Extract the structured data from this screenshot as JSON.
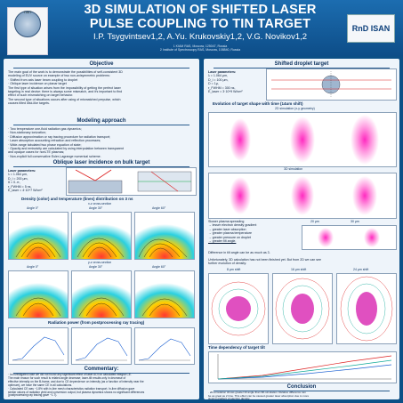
{
  "header": {
    "title_line1": "3D SIMULATION OF SHIFTED LASER",
    "title_line2": "PULSE COUPLING TO TIN TARGET",
    "authors": "I.P. Tsygvintsev1,2, A.Yu. Krukovskiy1,2, V.G. Novikov1,2",
    "affil1": "1 KIAM RAS, Moscow, 125047, Russia",
    "affil2": "2 Institute of Spectroscopy RAS, Moscow, 108840, Russia",
    "logo_right_text": "RnD ISAN"
  },
  "left": {
    "objective_title": "Objective",
    "objective_text": [
      "The main goal of the work is to demonstrate the possibilities of self-consistent 3D",
      "modeling of EUV source on example of two non-axisymmetric problems:",
      "· Shifted from axis laser beam coupling to droplet",
      "· Oblique laser incidence on planar target",
      "The first type of situation arises from the impossibility of getting the perfect laser",
      "targeting in real device: there is always some mismatch, and it's important to find",
      "effect of such mismatching on target behavior.",
      "The second type of situations occurs after using of mismatched prepulse, which",
      "causes tilted disk-like targets."
    ],
    "modeling_title": "Modeling approach",
    "modeling_text": [
      "· Two temperature one-fluid radiation gas dynamics;",
      "· Non-stationary ionization;",
      "· Diffusion approximation or ray tracing procedure for radiation transport;",
      "· Laser absorption accounting refraction and reflection processes;",
      "· Wide-range tabulated two phase equation of state;",
      "· Opacity and emissivity are calculated by using interpolation between transparent",
      "  and opaque cases for nonLTE plasmas;",
      "· Non-explicit full conservative Euler-Lagrange numerical scheme."
    ],
    "oblique_title": "Oblique laser incidence on bulk target",
    "laser_params_title": "Laser parameters:",
    "laser_params": [
      "λ = 1.064 μm,",
      "D_l = 200 μm,",
      "θ = 0..π,",
      "τ_FWHM = 5 ns,",
      "E_laser = 4·10^7 W/cm²"
    ],
    "density_title": "Density (color) and temperature (lines) distribution on 3 ns",
    "xz_label": "x-z cross-section",
    "angle_labels_top": [
      "Angle 0°",
      "Angle 30°",
      "Angle 60°"
    ],
    "yz_label": "y-z cross-section",
    "angle_labels_bottom": [
      "Angle 0°",
      "Angle 30°",
      "Angle 60°"
    ],
    "radiation_title": "Radiation power (from postprocessing ray tracing)",
    "commentary_title": "Commentary:",
    "commentary_text": [
      "· In investigated case we did not found any significant effect of laser AOI on calculated integral CE.",
      "The main reason for such result is related angle decrease; laser-tilt results only in decrease of",
      "effective intensity on the B-frame, and due to CE dependence on intensity (as a function of intensity near the",
      "optimum), we have the same CE in all calculations.",
      "· Calculated CE was ~1.8% with in-line mesh characteristics radiation transport. In-line diffusion gave",
      "similar values of radiation yield and conversion output, but plasma dynamics shows no significant differences",
      "(postprocessing ray tracing gave ~1.7)."
    ]
  },
  "right": {
    "shifted_title": "Shifted droplet target",
    "laser_params_title": "Laser parameters:",
    "laser_params": [
      "λ = 1.064 μm,",
      "D_l = 100 μm,",
      "D = 1μ,",
      "τ_FWHM = 300 ns,",
      "E_laser = 3·10^9 W/cm²"
    ],
    "evolution_title": "Evolution of target shape with time (14um shift)",
    "sim2d_label": "2D simulation (x-y geometry)",
    "sim3d_label": "3D simulation",
    "shift_labels": [
      "20 μm",
      "30 μm"
    ],
    "bullets": [
      "Slower plasma spreading",
      "→ lesser electron density gradient",
      "→ greater laser absorption",
      "→ greater plasma temperature",
      "→ greater pressure on droplet",
      "→ greater tilt angle."
    ],
    "difference_text": "Difference in tilt angle can be as much as 3.",
    "unfortunately_text": [
      "Unfortunately, 3D calculation has not been finished yet. But from 2D we can see",
      "further evolution of density:"
    ],
    "time_labels": [
      "8 μm shift",
      "16 μm shift",
      "24 μm shift"
    ],
    "time_dependency_title": "Time dependency of target tilt",
    "conclusion_title": "Conclusion",
    "conclusion_text": [
      "· 2D-simulation shows greater tilt angle than 3D-simulation. Relative difference can",
      "  be as great as 2 time. This effect can be caused greater laser absorption due to more",
      "  sloping gradient of electron density.",
      "· Also, it should be noticed, that 3D-simulation reveal linear dependency of resulting",
      "  tilt angle as function of shift. Calculated coefficient ~2° per 1 μm shift.",
      "· In 3D simulation we expect coefficient ~1°-1.5° per 1 μm shift."
    ]
  }
}
